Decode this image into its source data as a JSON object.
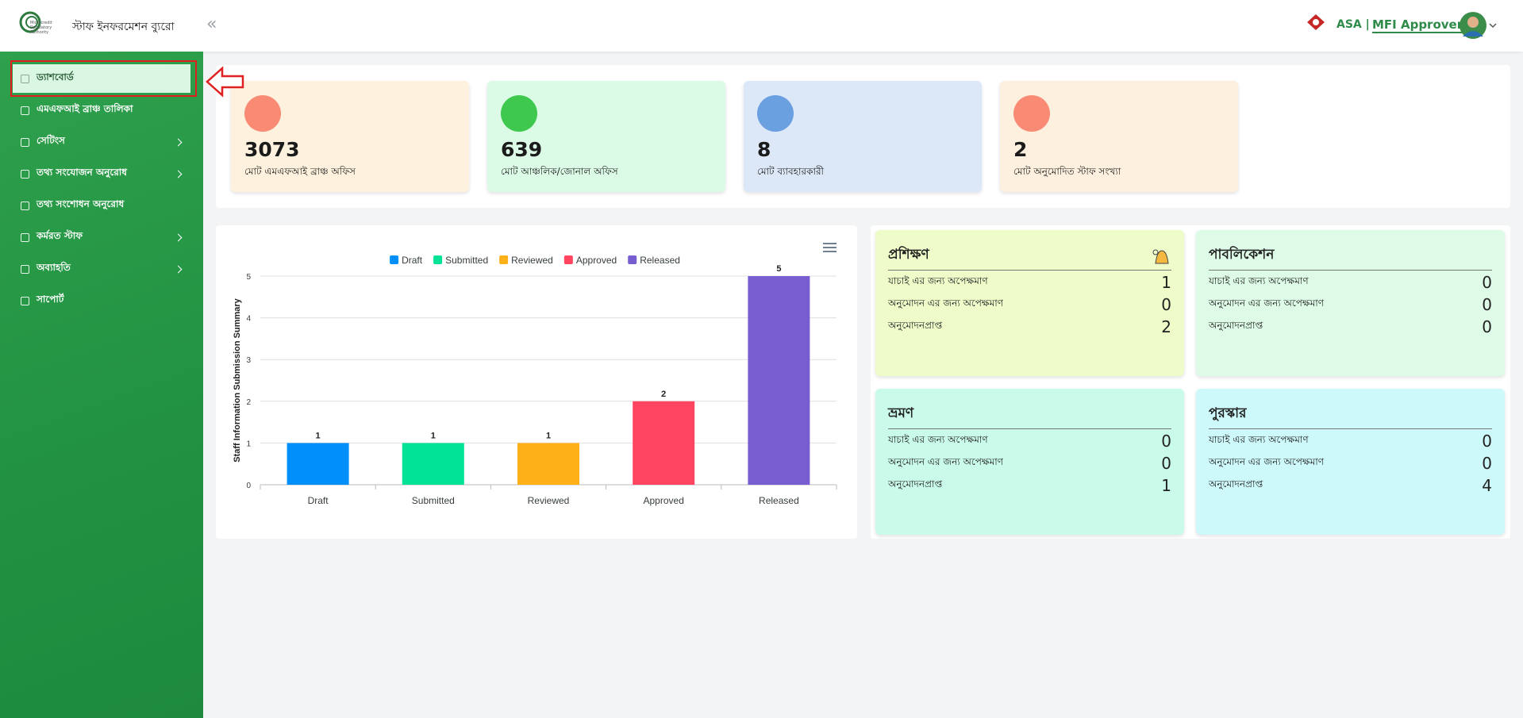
{
  "header": {
    "logo_text": "Microcredit Regulatory Authority",
    "title": "স্টাফ ইনফরমেশন ব্যুরো",
    "org": "ASA |",
    "role": "MFI Approver"
  },
  "sidebar": [
    {
      "label": "ড্যাশবোর্ড",
      "chevron": false
    },
    {
      "label": "এমএফআই ব্রাঞ্চ তালিকা",
      "chevron": false
    },
    {
      "label": "সেটিংস",
      "chevron": true
    },
    {
      "label": "তথ্য সংযোজন অনুরোধ",
      "chevron": true
    },
    {
      "label": "তথ্য সংশোধন অনুরোধ",
      "chevron": false
    },
    {
      "label": "কর্মরত স্টাফ",
      "chevron": true
    },
    {
      "label": "অব্যাহতি",
      "chevron": true
    },
    {
      "label": "সাপোর্ট",
      "chevron": false
    }
  ],
  "stats": [
    {
      "value": "3073",
      "label": "মোট এমএফআই ব্রাঞ্চ অফিস",
      "bg": "#fef2de",
      "icon": "#f98a73"
    },
    {
      "value": "639",
      "label": "মোট আঞ্চলিক/জোনাল অফিস",
      "bg": "#dcfbe7",
      "icon": "#3ec94e"
    },
    {
      "value": "8",
      "label": "মোট ব্যাবহারকারী",
      "bg": "#dce8f8",
      "icon": "#6a9fe0"
    },
    {
      "value": "2",
      "label": "মোট অনুমোদিত স্টাফ সংখ্যা",
      "bg": "#fdf0de",
      "icon": "#f98a73"
    }
  ],
  "chart_data": {
    "type": "bar",
    "y_label": "Staff Information Submission Summary",
    "categories": [
      "Draft",
      "Submitted",
      "Reviewed",
      "Approved",
      "Released"
    ],
    "values": [
      1,
      1,
      1,
      2,
      5
    ],
    "colors": [
      "#008ffb",
      "#00e396",
      "#feb019",
      "#ff4560",
      "#775dd0"
    ],
    "ylim": [
      0,
      5
    ],
    "yticks": [
      0,
      1,
      2,
      3,
      4,
      5
    ],
    "grid": true
  },
  "panels": [
    {
      "title": "প্রশিক্ষণ",
      "bg": "#eefcca",
      "rows": [
        {
          "label": "যাচাই এর জন্য অপেক্ষমাণ",
          "value": "1"
        },
        {
          "label": "অনুমোদন এর জন্য অপেক্ষমাণ",
          "value": "0"
        },
        {
          "label": "অনুমোদনপ্রাপ্ত",
          "value": "2"
        }
      ]
    },
    {
      "title": "পাবলিকেশন",
      "bg": "#ddfbe7",
      "rows": [
        {
          "label": "যাচাই এর জন্য অপেক্ষমাণ",
          "value": "0"
        },
        {
          "label": "অনুমোদন এর জন্য অপেক্ষমাণ",
          "value": "0"
        },
        {
          "label": "অনুমোদনপ্রাপ্ত",
          "value": "0"
        }
      ]
    },
    {
      "title": "ভ্রমণ",
      "bg": "#cafbea",
      "rows": [
        {
          "label": "যাচাই এর জন্য অপেক্ষমাণ",
          "value": "0"
        },
        {
          "label": "অনুমোদন এর জন্য অপেক্ষমাণ",
          "value": "0"
        },
        {
          "label": "অনুমোদনপ্রাপ্ত",
          "value": "1"
        }
      ]
    },
    {
      "title": "পুরস্কার",
      "bg": "#cef9fb",
      "rows": [
        {
          "label": "যাচাই এর জন্য অপেক্ষমাণ",
          "value": "0"
        },
        {
          "label": "অনুমোদন এর জন্য অপেক্ষমাণ",
          "value": "0"
        },
        {
          "label": "অনুমোদনপ্রাপ্ত",
          "value": "4"
        }
      ]
    }
  ]
}
